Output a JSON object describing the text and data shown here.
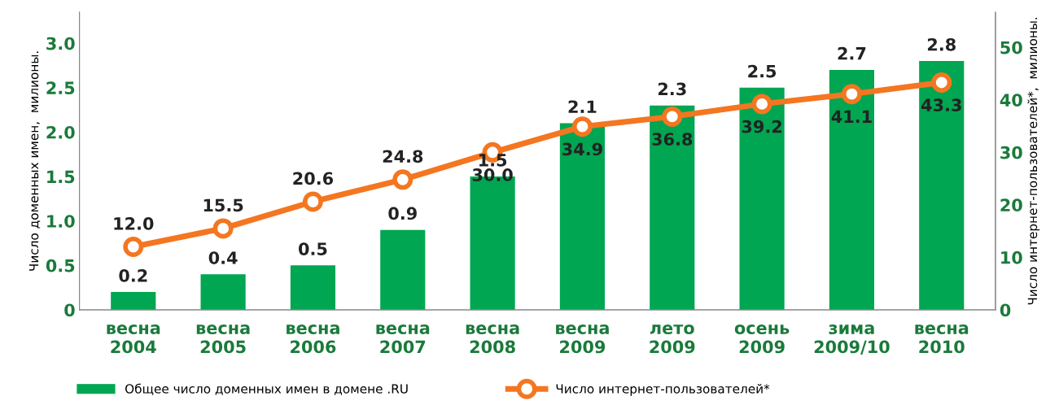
{
  "chart_data": {
    "type": "bar",
    "categories": [
      "весна\n2004",
      "весна\n2005",
      "весна\n2006",
      "весна\n2007",
      "весна\n2008",
      "весна\n2009",
      "лето\n2009",
      "осень\n2009",
      "зима\n2009/10",
      "весна\n2010"
    ],
    "series": [
      {
        "name": "Общее число доменных имен в домене .RU",
        "color": "#00a651",
        "values": [
          0.2,
          0.4,
          0.5,
          0.9,
          1.5,
          2.1,
          2.3,
          2.5,
          2.7,
          2.8
        ]
      },
      {
        "name": "Число интернет-пользователей*",
        "type": "line",
        "axis": "y2",
        "color": "#f47621",
        "marker": "circle",
        "values": [
          12.0,
          15.5,
          20.6,
          24.8,
          30.0,
          34.9,
          36.8,
          39.2,
          41.1,
          43.3
        ],
        "value_labels": [
          "12.0",
          "15.5",
          "20.6",
          "24.8",
          "30.0",
          "34.9",
          "36.8",
          "39.2",
          "41.1",
          "43.3"
        ]
      }
    ],
    "ylabel": "Число доменных имен,  милионы.",
    "y2label": "Число интернет-пользователей*,  милионы.",
    "ylim": [
      0,
      3.35
    ],
    "yticks": [
      0,
      {
        "value": 0.5,
        "label": "0.5"
      },
      {
        "value": 1,
        "label": "1.0"
      },
      {
        "value": 1.5,
        "label": "1.5"
      },
      {
        "value": 2,
        "label": "2.0"
      },
      {
        "value": 2.5,
        "label": "2.5"
      },
      {
        "value": 3,
        "label": "3.0"
      }
    ],
    "y2lim": [
      0,
      56.7
    ],
    "y2ticks": [
      0,
      10,
      20,
      30,
      40,
      50
    ],
    "data_labels": true,
    "grid": false,
    "legend": "bottom"
  }
}
